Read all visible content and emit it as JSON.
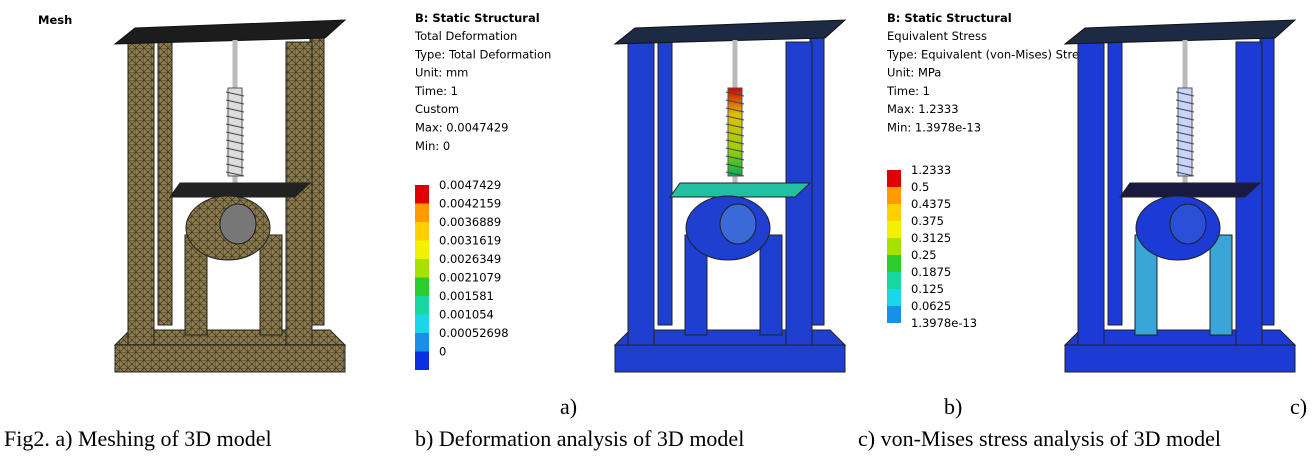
{
  "panels": [
    {
      "title": "Mesh",
      "label": "a)"
    },
    {
      "title": "B: Static Structural",
      "details": [
        "Total Deformation",
        "Type: Total Deformation",
        "Unit: mm",
        "Time: 1",
        "Custom",
        "Max: 0.0047429",
        "Min: 0"
      ],
      "legend": [
        "0.0047429",
        "0.0042159",
        "0.0036889",
        "0.0031619",
        "0.0026349",
        "0.0021079",
        "0.001581",
        "0.001054",
        "0.00052698",
        "0"
      ],
      "label": "b)"
    },
    {
      "title": "B: Static Structural",
      "details": [
        "Equivalent Stress",
        "Type: Equivalent (von-Mises) Stress",
        "Unit: MPa",
        "Time: 1",
        "Max: 1.2333",
        "Min: 1.3978e-13"
      ],
      "legend": [
        "1.2333",
        "0.5",
        "0.4375",
        "0.375",
        "0.3125",
        "0.25",
        "0.1875",
        "0.125",
        "0.0625",
        "1.3978e-13"
      ],
      "label": "c)"
    }
  ],
  "captions": [
    "Fig2. a) Meshing of 3D model",
    "b) Deformation analysis of 3D model",
    "c) von-Mises stress analysis of 3D model"
  ]
}
